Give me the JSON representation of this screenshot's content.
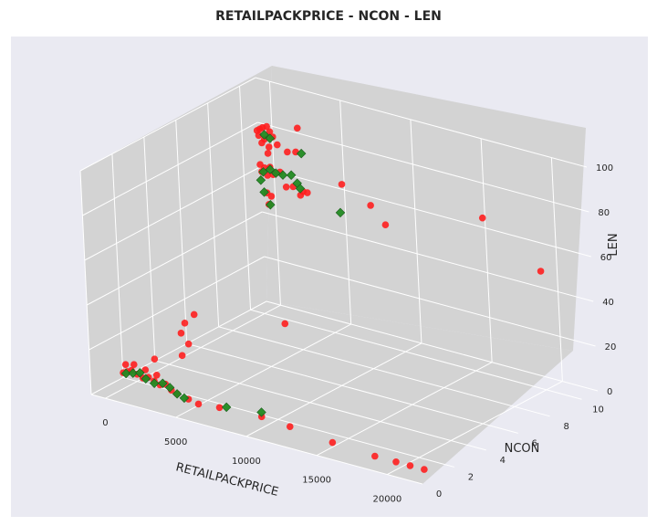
{
  "chart_data": {
    "type": "scatter3d",
    "title": "RETAILPACKPRICE - NCON - LEN",
    "xlabel": "RETAILPACKPRICE",
    "ylabel": "NCON",
    "zlabel": "LEN",
    "xlim": [
      -1000,
      22500
    ],
    "ylim": [
      0,
      11
    ],
    "zlim": [
      0,
      100
    ],
    "x_ticks": [
      "0",
      "5000",
      "10000",
      "15000",
      "20000"
    ],
    "y_ticks": [
      "0",
      "2",
      "4",
      "6",
      "8",
      "10"
    ],
    "z_ticks": [
      "0",
      "20",
      "40",
      "60",
      "80",
      "100"
    ],
    "grid": true,
    "colors": {
      "red_series": "#ff1a1a",
      "green_series": "#228b22",
      "pane": "#d3d3d3",
      "background": "#eaeaf2",
      "gridline": "#ffffff"
    },
    "series": [
      {
        "marker": "circle",
        "color": "#ff1a1a",
        "points": [
          [
            100,
            10,
            82
          ],
          [
            300,
            10,
            83
          ],
          [
            500,
            10,
            84
          ],
          [
            800,
            10,
            85
          ],
          [
            1000,
            10,
            83
          ],
          [
            200,
            10,
            80
          ],
          [
            600,
            10,
            79
          ],
          [
            1200,
            10,
            81
          ],
          [
            400,
            10,
            77
          ],
          [
            900,
            10,
            76
          ],
          [
            1500,
            10,
            78
          ],
          [
            2200,
            10,
            76
          ],
          [
            2800,
            10,
            77
          ],
          [
            800,
            10,
            73
          ],
          [
            200,
            10,
            67
          ],
          [
            500,
            10,
            66
          ],
          [
            900,
            10,
            67
          ],
          [
            1300,
            10,
            65
          ],
          [
            1600,
            10,
            66
          ],
          [
            300,
            10,
            64
          ],
          [
            700,
            10,
            63
          ],
          [
            1100,
            10,
            64
          ],
          [
            2000,
            10,
            60
          ],
          [
            2500,
            10,
            61
          ],
          [
            3200,
            10,
            60
          ],
          [
            3500,
            10,
            60
          ],
          [
            3000,
            10,
            58
          ],
          [
            600,
            10,
            55
          ],
          [
            900,
            10,
            54
          ],
          [
            700,
            10,
            50
          ],
          [
            6000,
            10,
            68
          ],
          [
            8000,
            10,
            62
          ],
          [
            9000,
            10,
            55
          ],
          [
            16000,
            10,
            70
          ],
          [
            20000,
            10,
            53
          ],
          [
            3000,
            10,
            88
          ],
          [
            200,
            1,
            8
          ],
          [
            500,
            1,
            9
          ],
          [
            800,
            1,
            10
          ],
          [
            1200,
            1,
            9
          ],
          [
            1600,
            1,
            8
          ],
          [
            2000,
            1,
            9
          ],
          [
            2400,
            1,
            8
          ],
          [
            2800,
            1,
            7
          ],
          [
            3200,
            1,
            8
          ],
          [
            3600,
            1,
            6
          ],
          [
            400,
            1,
            12
          ],
          [
            1000,
            1,
            13
          ],
          [
            1800,
            1,
            12
          ],
          [
            2600,
            1,
            11
          ],
          [
            4000,
            1,
            5
          ],
          [
            4800,
            1,
            4
          ],
          [
            5500,
            1,
            3
          ],
          [
            2500,
            1,
            18
          ],
          [
            4500,
            1,
            23
          ],
          [
            5000,
            1,
            29
          ],
          [
            4500,
            1,
            33
          ],
          [
            4800,
            1,
            38
          ],
          [
            5500,
            1,
            43
          ],
          [
            7000,
            1,
            4
          ],
          [
            10000,
            1,
            5
          ],
          [
            12000,
            1,
            4
          ],
          [
            15000,
            1,
            2
          ],
          [
            18000,
            1,
            1
          ],
          [
            19500,
            1,
            1
          ],
          [
            20500,
            1,
            1
          ],
          [
            21500,
            1,
            1
          ],
          [
            12000,
            1,
            50
          ]
        ]
      },
      {
        "marker": "diamond",
        "color": "#228b22",
        "points": [
          [
            600,
            10,
            81
          ],
          [
            1000,
            10,
            80
          ],
          [
            3200,
            10,
            77
          ],
          [
            400,
            10,
            64
          ],
          [
            900,
            10,
            66
          ],
          [
            1300,
            10,
            65
          ],
          [
            1800,
            10,
            65
          ],
          [
            2400,
            10,
            66
          ],
          [
            2800,
            10,
            63
          ],
          [
            3000,
            10,
            61
          ],
          [
            200,
            10,
            60
          ],
          [
            400,
            10,
            55
          ],
          [
            800,
            10,
            50
          ],
          [
            5800,
            10,
            55
          ],
          [
            400,
            1,
            8
          ],
          [
            900,
            1,
            9
          ],
          [
            1400,
            1,
            10
          ],
          [
            1800,
            1,
            8
          ],
          [
            2400,
            1,
            7
          ],
          [
            3000,
            1,
            8
          ],
          [
            3500,
            1,
            7
          ],
          [
            4000,
            1,
            5
          ],
          [
            4500,
            1,
            4
          ],
          [
            7500,
            1,
            5
          ],
          [
            10000,
            1,
            7
          ]
        ]
      }
    ]
  }
}
